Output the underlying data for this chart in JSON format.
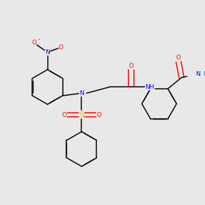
{
  "bg_color": "#e8e8e8",
  "atom_colors": {
    "N": "#0000ff",
    "O": "#ff0000",
    "S": "#cccc00",
    "H": "#008080",
    "C": "#000000"
  }
}
